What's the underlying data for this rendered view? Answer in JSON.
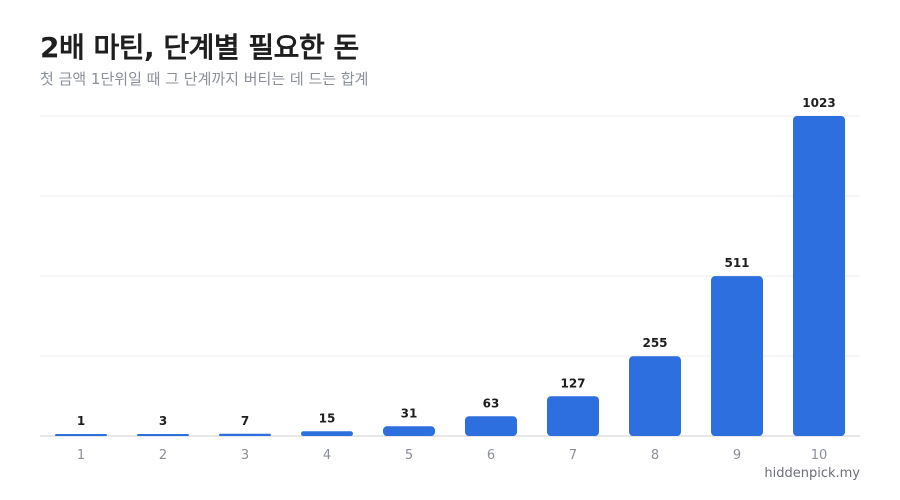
{
  "title": "2배 마틴, 단계별 필요한 돈",
  "subtitle": "첫 금액 1단위일 때 그 단계까지 버티는 데 드는 합계",
  "watermark": "hiddenpick.my",
  "colors": {
    "bar": "#2e6fe0",
    "grid": "#ececec"
  },
  "chart_data": {
    "type": "bar",
    "categories": [
      "1",
      "2",
      "3",
      "4",
      "5",
      "6",
      "7",
      "8",
      "9",
      "10"
    ],
    "values": [
      1,
      3,
      7,
      15,
      31,
      63,
      127,
      255,
      511,
      1023
    ],
    "ylim": [
      0,
      1023
    ],
    "grid": true,
    "xlabel": "",
    "ylabel": ""
  }
}
